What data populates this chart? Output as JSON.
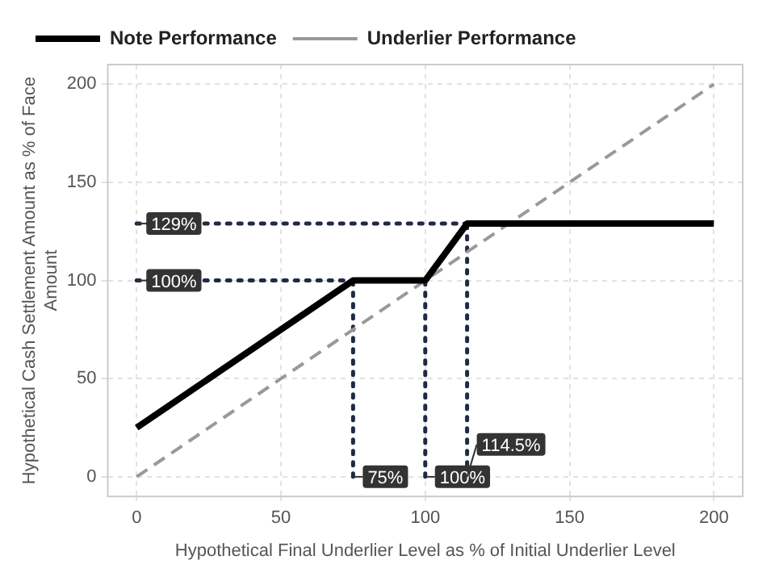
{
  "chart_data": {
    "type": "line",
    "xlabel": "Hypothetical Final Underlier Level as % of Initial Underlier Level",
    "ylabel": "Hypothetical Cash Settlement Amount as % of Face Amount",
    "xlim": [
      -10,
      210
    ],
    "xticks": [
      0,
      50,
      100,
      150,
      200
    ],
    "ylim": [
      -10,
      210
    ],
    "yticks": [
      0,
      50,
      100,
      150,
      200
    ],
    "grid": true,
    "legend": "top",
    "marker": "none",
    "series": [
      {
        "name": "Note Performance",
        "color": "#000000",
        "line_style": "solid",
        "x": [
          0,
          75,
          100,
          114.5,
          200
        ],
        "values": [
          25,
          100,
          100,
          129,
          129
        ]
      },
      {
        "name": "Underlier Performance",
        "color": "#999999",
        "line_style": "dashed",
        "x": [
          0,
          200
        ],
        "values": [
          0,
          200
        ]
      },
      {
        "color": "#1f2a44",
        "line_style": "dotted",
        "x": [
          0,
          114.5
        ],
        "values": [
          129,
          129
        ]
      },
      {
        "color": "#1f2a44",
        "line_style": "dotted",
        "x": [
          0,
          100
        ],
        "values": [
          100,
          100
        ]
      },
      {
        "color": "#1f2a44",
        "line_style": "dotted",
        "x": [
          75,
          75
        ],
        "values": [
          0,
          100
        ]
      },
      {
        "color": "#1f2a44",
        "line_style": "dotted",
        "x": [
          100,
          100
        ],
        "values": [
          0,
          100
        ]
      },
      {
        "color": "#1f2a44",
        "line_style": "dotted",
        "x": [
          114.5,
          114.5
        ],
        "values": [
          0,
          129
        ]
      }
    ],
    "annotations": [
      {
        "text": "129%",
        "x": 0,
        "y": 129
      },
      {
        "text": "100%",
        "x": 0,
        "y": 100
      },
      {
        "text": "75%",
        "x": 75,
        "y": 0
      },
      {
        "text": "100%",
        "x": 100,
        "y": 0
      },
      {
        "text": "114.5%",
        "x": 114.5,
        "y": 0
      }
    ]
  }
}
